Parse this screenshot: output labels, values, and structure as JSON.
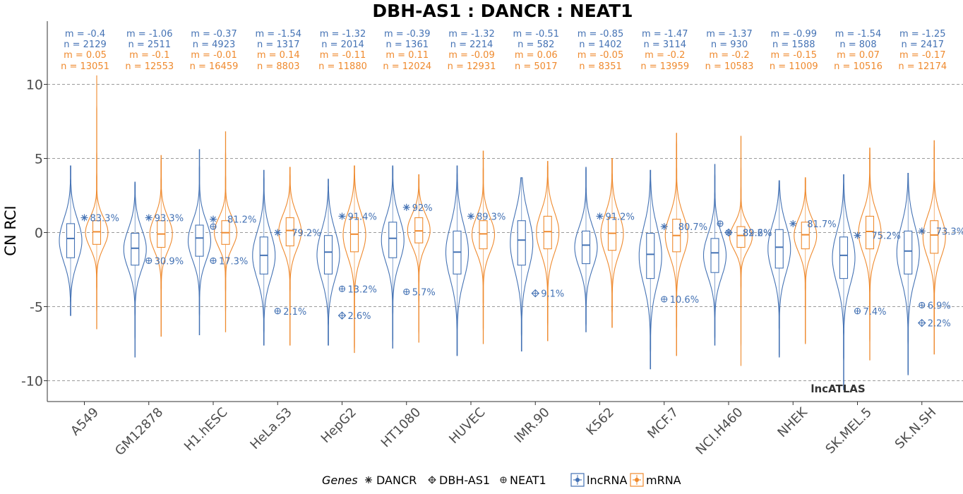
{
  "chart_data": {
    "type": "violin",
    "title": "DBH-AS1 : DANCR : NEAT1",
    "ylabel": "CN RCI",
    "xlabel": "",
    "ylim": [
      -11,
      14
    ],
    "yticks": [
      -10,
      -5,
      0,
      5,
      10
    ],
    "grid": "horizontal dashed",
    "watermark": "lncATLAS",
    "colors": {
      "lncRNA": "#4472b4",
      "mRNA": "#ef8a2e"
    },
    "categories": [
      "A549",
      "GM12878",
      "H1.hESC",
      "HeLa.S3",
      "HepG2",
      "HT1080",
      "HUVEC",
      "IMR.90",
      "K562",
      "MCF.7",
      "NCI.H460",
      "NHEK",
      "SK.MEL.5",
      "SK.N.SH"
    ],
    "series": [
      {
        "name": "lncRNA",
        "m_labels": [
          "m = -0.4",
          "m = -1.06",
          "m = -0.37",
          "m = -1.54",
          "m = -1.32",
          "m = -0.39",
          "m = -1.32",
          "m = -0.51",
          "m = -0.85",
          "m = -1.47",
          "m = -1.37",
          "m = -0.99",
          "m = -1.54",
          "m = -1.25"
        ],
        "n_labels": [
          "n = 2129",
          "n = 2511",
          "n = 4923",
          "n = 1317",
          "n = 2014",
          "n = 1361",
          "n = 2214",
          "n = 582",
          "n = 1402",
          "n = 3114",
          "n = 930",
          "n = 1588",
          "n = 808",
          "n = 2417"
        ],
        "median": [
          -0.4,
          -1.06,
          -0.37,
          -1.54,
          -1.32,
          -0.39,
          -1.32,
          -0.51,
          -0.85,
          -1.47,
          -1.37,
          -0.99,
          -1.54,
          -1.25
        ],
        "q1": [
          -1.7,
          -2.2,
          -1.6,
          -2.8,
          -2.8,
          -1.7,
          -2.8,
          -2.2,
          -2.1,
          -3.1,
          -2.7,
          -2.4,
          -3.1,
          -2.8
        ],
        "q3": [
          0.6,
          -0.05,
          0.5,
          -0.3,
          -0.2,
          0.7,
          0.1,
          0.8,
          0.1,
          -0.05,
          -0.4,
          0.2,
          -0.3,
          0.1
        ],
        "min": [
          -5.6,
          -8.4,
          -6.9,
          -7.6,
          -7.6,
          -7.8,
          -8.3,
          -8,
          -6.7,
          -9.2,
          -7.6,
          -8.4,
          -10.6,
          -9.6
        ],
        "max": [
          4.5,
          3.4,
          5.6,
          4.2,
          3.6,
          4.5,
          4.5,
          3.7,
          4.4,
          4.2,
          4.6,
          3.5,
          3.9,
          4
        ]
      },
      {
        "name": "mRNA",
        "m_labels": [
          "m = 0.05",
          "m = -0.1",
          "m = -0.01",
          "m = 0.14",
          "m = -0.11",
          "m = 0.11",
          "m = -0.09",
          "m = 0.06",
          "m = -0.05",
          "m = -0.2",
          "m = -0.2",
          "m = -0.15",
          "m = 0.07",
          "m = -0.17"
        ],
        "n_labels": [
          "n = 13051",
          "n = 12553",
          "n = 16459",
          "n = 8803",
          "n = 11880",
          "n = 12024",
          "n = 12931",
          "n = 5017",
          "n = 8351",
          "n = 13959",
          "n = 10583",
          "n = 11009",
          "n = 10516",
          "n = 12174"
        ],
        "median": [
          0.05,
          -0.1,
          -0.01,
          0.14,
          -0.11,
          0.11,
          -0.09,
          0.06,
          -0.05,
          -0.2,
          -0.2,
          -0.15,
          0.07,
          -0.17
        ],
        "q1": [
          -0.8,
          -1,
          -0.8,
          -0.9,
          -1.3,
          -0.7,
          -1.1,
          -1.1,
          -1.2,
          -1.3,
          -1,
          -1.1,
          -1.1,
          -1.4
        ],
        "q3": [
          0.8,
          0.8,
          0.8,
          1,
          1,
          1,
          0.8,
          1.1,
          1,
          0.9,
          0.4,
          0.7,
          1.1,
          0.8
        ],
        "min": [
          -6.5,
          -7,
          -6.7,
          -7.6,
          -8.1,
          -7.4,
          -7.5,
          -7.3,
          -6.4,
          -8.3,
          -9,
          -7.5,
          -8.6,
          -8.2
        ],
        "max": [
          10.6,
          5.2,
          6.8,
          4.4,
          4.5,
          3.9,
          5.5,
          4.8,
          5,
          6.7,
          6.5,
          3.7,
          5.7,
          6.2
        ]
      }
    ],
    "genes": [
      {
        "name": "DANCR",
        "glyph": "✳",
        "lncRNA_rci": [
          1,
          1,
          0.9,
          0,
          1.1,
          1.7,
          1.1,
          null,
          1.1,
          0.4,
          0,
          0.6,
          -0.2,
          0.1
        ],
        "lncRNA_pct": [
          "83.3%",
          "93.3%",
          null,
          null,
          "91.4%",
          "92%",
          "89.3%",
          null,
          "91.2%",
          null,
          null,
          null,
          null,
          null
        ],
        "mRNA_pct": [
          null,
          null,
          "81.2%",
          "79.2%",
          null,
          null,
          null,
          null,
          null,
          "80.7%",
          "89.6%",
          "81.7%",
          "75.2%",
          "73.3%"
        ]
      },
      {
        "name": "DBH-AS1",
        "glyph": "⊕",
        "lncRNA_rci": [
          null,
          null,
          null,
          null,
          -5.6,
          null,
          null,
          -4.1,
          null,
          null,
          0,
          null,
          null,
          -6.1
        ],
        "lncRNA_pct": [
          null,
          null,
          null,
          null,
          "2.6%",
          null,
          null,
          "9.1%",
          null,
          null,
          "82.2%",
          null,
          null,
          "2.2%"
        ],
        "mRNA_pct": [
          null,
          null,
          null,
          null,
          null,
          null,
          null,
          null,
          null,
          null,
          null,
          null,
          null,
          null
        ]
      },
      {
        "name": "NEAT1",
        "glyph": "⊕",
        "lncRNA_rci": [
          null,
          -1.9,
          -1.9,
          -5.3,
          -3.8,
          -4,
          null,
          null,
          null,
          -4.5,
          0.6,
          null,
          -5.3,
          -4.9
        ],
        "lncRNA_pct": [
          null,
          "30.9%",
          "17.3%",
          "2.1%",
          "13.2%",
          "5.7%",
          null,
          null,
          null,
          "10.6%",
          null,
          null,
          "7.4%",
          "6.9%"
        ],
        "mRNA_pct": [
          null,
          null,
          null,
          null,
          null,
          null,
          null,
          null,
          null,
          null,
          null,
          null,
          null,
          null
        ]
      }
    ],
    "h1_extra_marker_rci": 0.4,
    "legend": {
      "position": "bottom",
      "genes_title": "Genes",
      "genes": [
        {
          "glyph": "✳",
          "label": "DANCR"
        },
        {
          "glyph": "⊕",
          "label": "DBH-AS1"
        },
        {
          "glyph": "⊕",
          "label": "NEAT1"
        }
      ],
      "types": [
        {
          "label": "lncRNA",
          "color": "#4472b4"
        },
        {
          "label": "mRNA",
          "color": "#ef8a2e"
        }
      ]
    }
  }
}
